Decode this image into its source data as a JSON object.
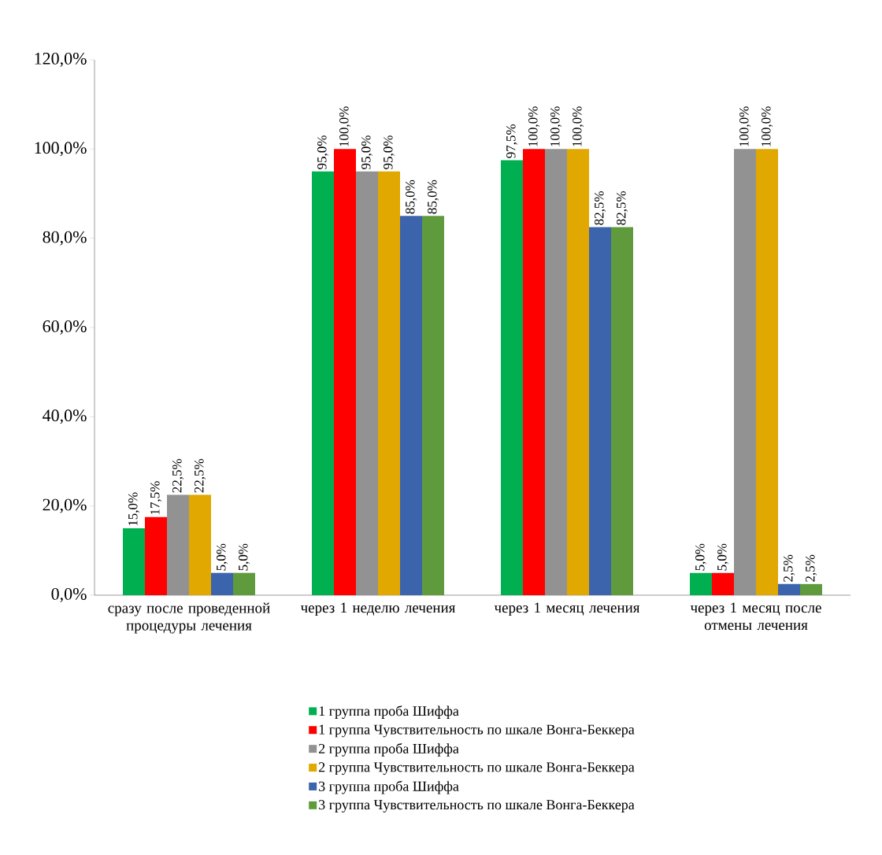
{
  "chart_data": {
    "type": "bar",
    "categories": [
      "сразу после проведенной процедуры лечения",
      "через 1 неделю лечения",
      "через 1 месяц лечения",
      "через 1 месяц после отмены лечения"
    ],
    "series": [
      {
        "name": "1 группа проба Шиффа",
        "color": "#00b050",
        "values": [
          15.0,
          95.0,
          97.5,
          5.0
        ],
        "value_labels": [
          "15,0%",
          "95,0%",
          "97,5%",
          "5,0%"
        ]
      },
      {
        "name": "1 группа Чувствительность по шкале Вонга-Беккера",
        "color": "#ff0000",
        "values": [
          17.5,
          100.0,
          100.0,
          5.0
        ],
        "value_labels": [
          "17,5%",
          "100,0%",
          "100,0%",
          "5,0%"
        ]
      },
      {
        "name": "2 группа проба Шиффа",
        "color": "#929292",
        "values": [
          22.5,
          95.0,
          100.0,
          100.0
        ],
        "value_labels": [
          "22,5%",
          "95,0%",
          "100,0%",
          "100,0%"
        ]
      },
      {
        "name": "2 группа Чувствительность по шкале Вонга-Беккера",
        "color": "#e0a800",
        "values": [
          22.5,
          95.0,
          100.0,
          100.0
        ],
        "value_labels": [
          "22,5%",
          "95,0%",
          "100,0%",
          "100,0%"
        ]
      },
      {
        "name": "3 группа проба Шиффа",
        "color": "#3c64ac",
        "values": [
          5.0,
          85.0,
          82.5,
          2.5
        ],
        "value_labels": [
          "5,0%",
          "85,0%",
          "82,5%",
          "2,5%"
        ]
      },
      {
        "name": "3 группа Чувствительность по шкале Вонга-Беккера",
        "color": "#5f9a3c",
        "values": [
          5.0,
          85.0,
          82.5,
          2.5
        ],
        "value_labels": [
          "5,0%",
          "85,0%",
          "82,5%",
          "2,5%"
        ]
      }
    ],
    "ylim": [
      0,
      120
    ],
    "yticks": [
      {
        "value": 0,
        "label": "0,0%"
      },
      {
        "value": 20,
        "label": "20,0%"
      },
      {
        "value": 40,
        "label": "40,0%"
      },
      {
        "value": 60,
        "label": "60,0%"
      },
      {
        "value": 80,
        "label": "80,0%"
      },
      {
        "value": 100,
        "label": "100,0%"
      },
      {
        "value": 120,
        "label": "120,0%"
      }
    ],
    "grid": false,
    "legend": "bottom"
  }
}
